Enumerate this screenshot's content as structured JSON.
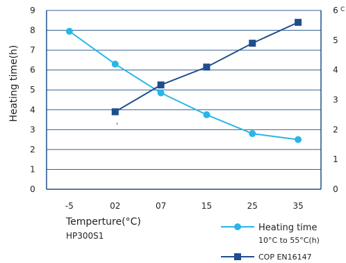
{
  "chart_data": {
    "type": "line",
    "title": "",
    "categories": [
      "-5",
      "02",
      "07",
      "15",
      "25",
      "35"
    ],
    "xlabel": "Temperture(°C)",
    "x_sublabel": "HP300S1",
    "ylabel": "Heating time(h)",
    "ylim": [
      0,
      9
    ],
    "y_ticks": [
      "0",
      "1",
      "2",
      "3",
      "4",
      "5",
      "6",
      "7",
      "8",
      "9"
    ],
    "y2lim": [
      0,
      6
    ],
    "y2_ticks": [
      "0",
      "1",
      "2",
      "3",
      "4",
      "5",
      "6"
    ],
    "y2_top_fragment": "C",
    "stray_mark": ",",
    "colors": {
      "heating": "#29b6e6",
      "cop": "#1f4e8c",
      "axis": "#1f4e8c"
    },
    "series": [
      {
        "name": "Heating time",
        "sublabel": "10°C to 55°C(h)",
        "axis": "left",
        "marker": "circle",
        "values": [
          7.95,
          6.3,
          4.85,
          3.75,
          2.8,
          2.5
        ]
      },
      {
        "name": "COP EN16147",
        "axis": "right",
        "marker": "square",
        "values": [
          null,
          2.6,
          3.5,
          4.1,
          4.9,
          5.6
        ]
      }
    ]
  }
}
